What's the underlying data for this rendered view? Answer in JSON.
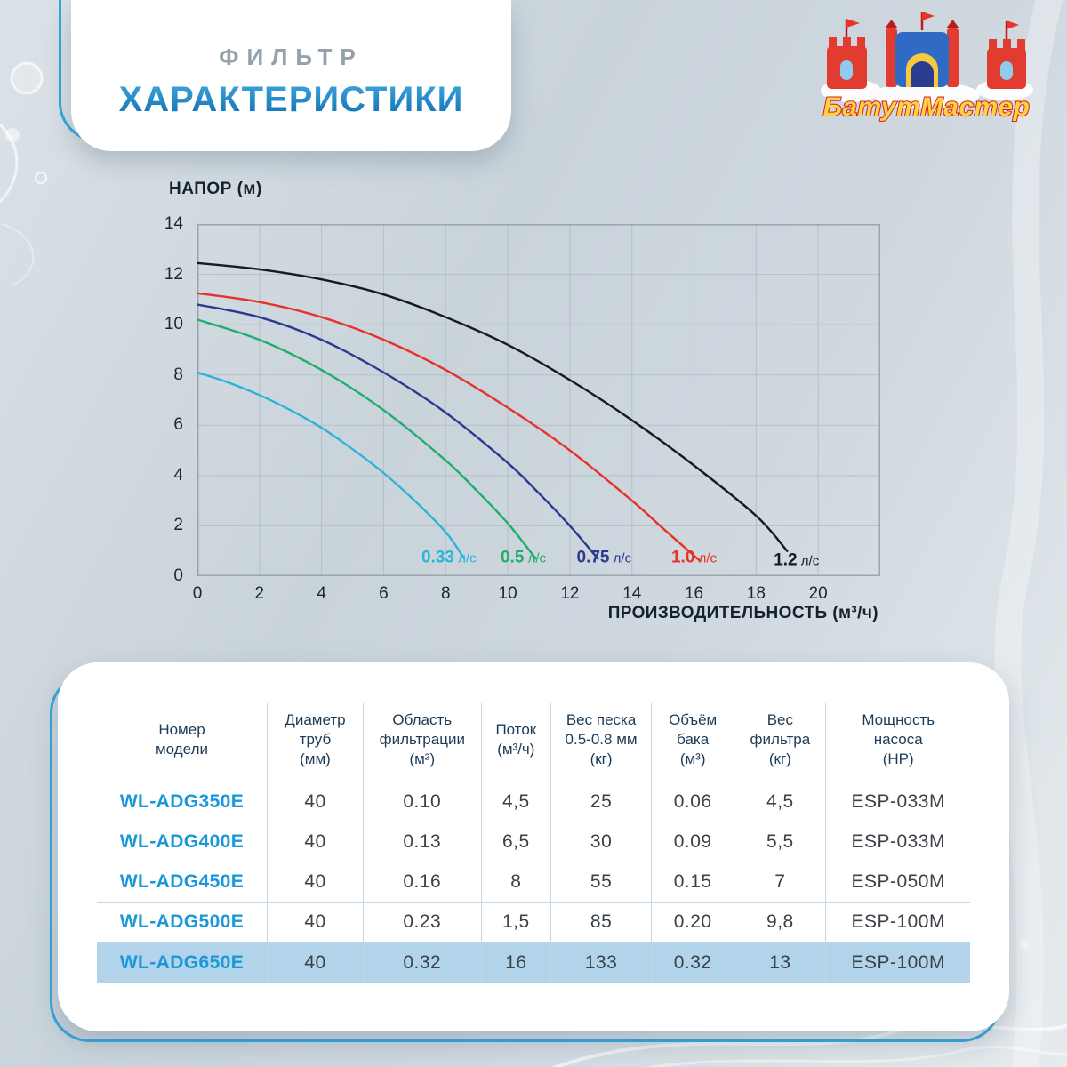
{
  "header": {
    "subtitle": "ФИЛЬТР",
    "title": "ХАРАКТЕРИСТИКИ"
  },
  "logo": {
    "text": "БатутМастер"
  },
  "chart_data": {
    "type": "line",
    "title": "",
    "ylabel": "НАПОР (м)",
    "xlabel": "ПРОИЗВОДИТЕЛЬНОСТЬ (м³/ч)",
    "xlim": [
      0,
      22
    ],
    "ylim": [
      0,
      14
    ],
    "x_ticks": [
      0,
      2,
      4,
      6,
      8,
      10,
      12,
      14,
      16,
      18,
      20
    ],
    "y_ticks": [
      0,
      2,
      4,
      6,
      8,
      10,
      12,
      14
    ],
    "grid": true,
    "legend_position": "labels-on-plot",
    "series": [
      {
        "name": "0.33 л/с",
        "value": "0.33",
        "unit": "л/с",
        "color": "#2cb3da",
        "label_pos": {
          "x": 8.1,
          "y": 0.55
        },
        "points": [
          [
            0,
            8.1
          ],
          [
            1,
            7.7
          ],
          [
            2,
            7.2
          ],
          [
            3,
            6.6
          ],
          [
            4,
            5.9
          ],
          [
            5,
            5.05
          ],
          [
            6,
            4.1
          ],
          [
            7,
            3.0
          ],
          [
            8,
            1.75
          ],
          [
            8.6,
            0.7
          ]
        ]
      },
      {
        "name": "0.5 л/с",
        "value": "0.5",
        "unit": "л/с",
        "color": "#1fae6e",
        "label_pos": {
          "x": 10.5,
          "y": 0.55
        },
        "points": [
          [
            0,
            10.2
          ],
          [
            2,
            9.4
          ],
          [
            4,
            8.2
          ],
          [
            6,
            6.6
          ],
          [
            8,
            4.6
          ],
          [
            9,
            3.4
          ],
          [
            10,
            2.1
          ],
          [
            10.9,
            0.7
          ]
        ]
      },
      {
        "name": "0.75 л/с",
        "value": "0.75",
        "unit": "л/с",
        "color": "#2b3990",
        "label_pos": {
          "x": 13.1,
          "y": 0.55
        },
        "points": [
          [
            0,
            10.8
          ],
          [
            2,
            10.3
          ],
          [
            4,
            9.4
          ],
          [
            6,
            8.1
          ],
          [
            8,
            6.5
          ],
          [
            10,
            4.5
          ],
          [
            11,
            3.3
          ],
          [
            12,
            2.0
          ],
          [
            12.9,
            0.7
          ]
        ]
      },
      {
        "name": "1.0 л/с",
        "value": "1.0",
        "unit": "л/с",
        "color": "#e63329",
        "label_pos": {
          "x": 16.0,
          "y": 0.55
        },
        "points": [
          [
            0,
            11.25
          ],
          [
            2,
            10.9
          ],
          [
            4,
            10.3
          ],
          [
            6,
            9.4
          ],
          [
            8,
            8.2
          ],
          [
            10,
            6.7
          ],
          [
            12,
            5.0
          ],
          [
            14,
            3.0
          ],
          [
            15,
            1.9
          ],
          [
            16.2,
            0.6
          ]
        ]
      },
      {
        "name": "1.2 л/с",
        "value": "1.2",
        "unit": "л/с",
        "color": "#1a1a1a",
        "label_pos": {
          "x": 19.3,
          "y": 0.45
        },
        "points": [
          [
            0,
            12.45
          ],
          [
            2,
            12.2
          ],
          [
            4,
            11.8
          ],
          [
            6,
            11.2
          ],
          [
            8,
            10.3
          ],
          [
            10,
            9.2
          ],
          [
            12,
            7.8
          ],
          [
            14,
            6.2
          ],
          [
            16,
            4.4
          ],
          [
            18,
            2.4
          ],
          [
            19,
            1.0
          ]
        ]
      }
    ]
  },
  "table": {
    "headers": [
      [
        "Номер",
        "модели"
      ],
      [
        "Диаметр",
        "труб",
        "(мм)"
      ],
      [
        "Область",
        "фильтрации",
        "(м²)"
      ],
      [
        "Поток",
        "(м³/ч)"
      ],
      [
        "Вес песка",
        "0.5-0.8 мм",
        "(кг)"
      ],
      [
        "Объём",
        "бака",
        "(м³)"
      ],
      [
        "Вес",
        "фильтра",
        "(кг)"
      ],
      [
        "Мощность",
        "насоса",
        "(HP)"
      ]
    ],
    "rows": [
      {
        "model": "WL-ADG350E",
        "values": [
          "40",
          "0.10",
          "4,5",
          "25",
          "0.06",
          "4,5",
          "ESP-033M"
        ],
        "highlight": false
      },
      {
        "model": "WL-ADG400E",
        "values": [
          "40",
          "0.13",
          "6,5",
          "30",
          "0.09",
          "5,5",
          "ESP-033M"
        ],
        "highlight": false
      },
      {
        "model": "WL-ADG450E",
        "values": [
          "40",
          "0.16",
          "8",
          "55",
          "0.15",
          "7",
          "ESP-050M"
        ],
        "highlight": false
      },
      {
        "model": "WL-ADG500E",
        "values": [
          "40",
          "0.23",
          "1,5",
          "85",
          "0.20",
          "9,8",
          "ESP-100M"
        ],
        "highlight": false
      },
      {
        "model": "WL-ADG650E",
        "values": [
          "40",
          "0.32",
          "16",
          "133",
          "0.32",
          "13",
          "ESP-100M"
        ],
        "highlight": true
      }
    ],
    "col_widths": [
      "19.5%",
      "11%",
      "13.5%",
      "8%",
      "11.5%",
      "9.5%",
      "10.5%",
      "16.5%"
    ]
  }
}
